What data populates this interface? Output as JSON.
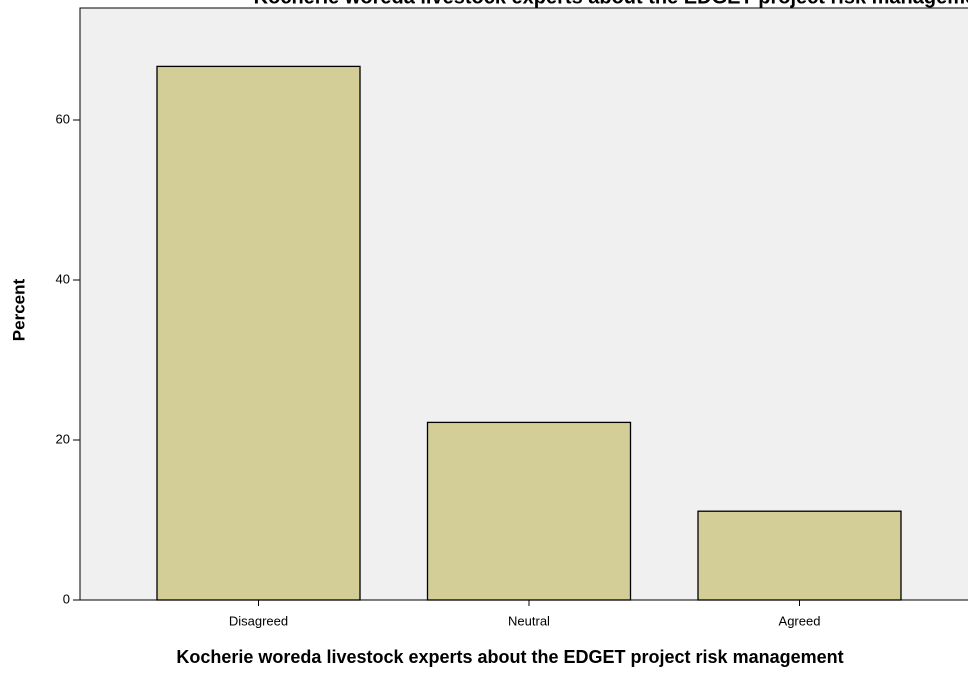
{
  "chart_data": {
    "type": "bar",
    "title": "Kocherie woreda livestock experts about the EDGET project risk management",
    "x_label": "Kocherie woreda livestock experts about the EDGET project risk management",
    "y_label": "Percent",
    "categories": [
      "Disagreed",
      "Neutral",
      "Agreed"
    ],
    "values": [
      66.7,
      22.2,
      11.1
    ],
    "color": "#d3ce97",
    "ylim": [
      0,
      74
    ],
    "yticks": [
      0,
      20,
      40,
      60
    ],
    "grid": false
  }
}
